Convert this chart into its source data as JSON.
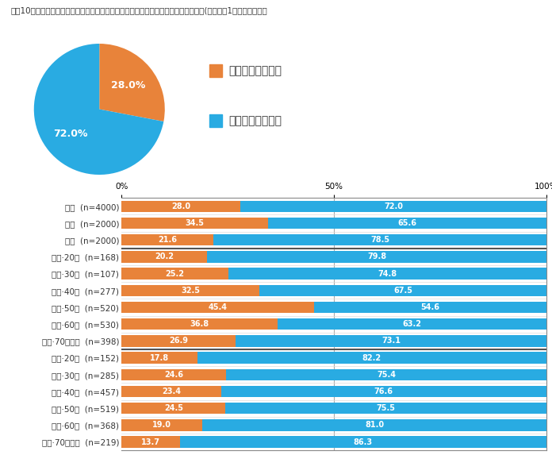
{
  "title": "図表10「あなたは自動車に乗っているとき、あおり運転をされたことはありますか。(お答えは1つ）」への回答",
  "pie_values": [
    28.0,
    72.0
  ],
  "pie_colors": [
    "#E8833A",
    "#29ABE2"
  ],
  "pie_labels": [
    "28.0%",
    "72.0%"
  ],
  "legend_labels": [
    "されたことがある",
    "されたことはない"
  ],
  "bar_categories": [
    "全体  (n=4000)",
    "男性  (n=2000)",
    "女性  (n=2000)",
    "男性·20代  (n=168)",
    "男性·30代  (n=107)",
    "男性·40代  (n=277)",
    "男性·50代  (n=520)",
    "男性·60代  (n=530)",
    "男性·70代以上  (n=398)",
    "女性·20代  (n=152)",
    "女性·30代  (n=285)",
    "女性·40代  (n=457)",
    "女性·50代  (n=519)",
    "女性·60代  (n=368)",
    "女性·70代以上  (n=219)"
  ],
  "orange_values": [
    28.0,
    34.5,
    21.6,
    20.2,
    25.2,
    32.5,
    45.4,
    36.8,
    26.9,
    17.8,
    24.6,
    23.4,
    24.5,
    19.0,
    13.7
  ],
  "blue_values": [
    72.0,
    65.6,
    78.5,
    79.8,
    74.8,
    67.5,
    54.6,
    63.2,
    73.1,
    82.2,
    75.4,
    76.6,
    75.5,
    81.0,
    86.3
  ],
  "orange_color": "#E8833A",
  "blue_color": "#29ABE2",
  "background_color": "#ffffff",
  "bar_height": 0.68,
  "title_fontsize": 7.5,
  "label_fontsize": 7.5,
  "value_fontsize": 7.0,
  "legend_fontsize": 10
}
